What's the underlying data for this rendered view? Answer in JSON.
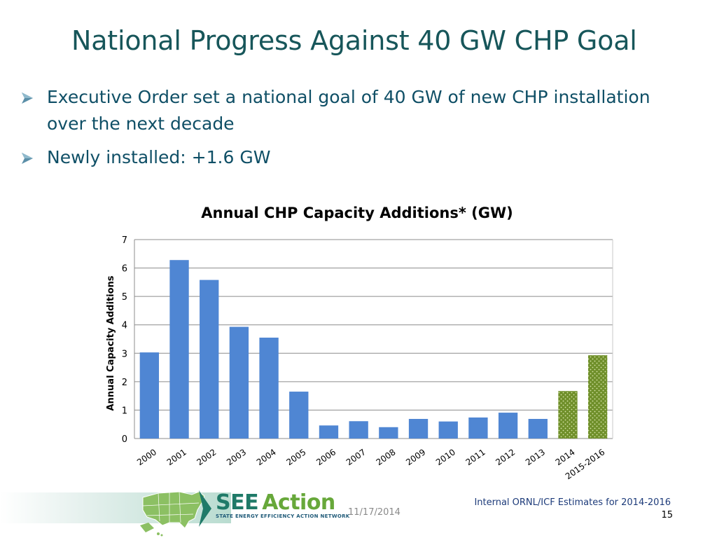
{
  "slide": {
    "title": "National Progress Against 40 GW CHP Goal",
    "bullets": [
      "Executive Order set a national goal of 40 GW of new CHP installation over the next decade",
      "Newly installed:  +1.6 GW"
    ]
  },
  "footer": {
    "logo_see": "SEE",
    "logo_action": "Action",
    "logo_subtitle": "STATE ENERGY EFFICIENCY ACTION NETWORK",
    "date": "11/17/2014",
    "note": "Internal ORNL/ICF Estimates for 2014-2016",
    "page_number": "15"
  },
  "colors": {
    "title": "#17565a",
    "bullet_text": "#0f4f66",
    "bar_actual": "#4f86d3",
    "bar_estimate": "#6f8f2a",
    "arrow": "#5b8fa8"
  },
  "chart_data": {
    "type": "bar",
    "title": "Annual CHP Capacity Additions* (GW)",
    "xlabel": "",
    "ylabel": "Annual Capacity Additions",
    "ylim": [
      0,
      7
    ],
    "yticks": [
      0,
      1,
      2,
      3,
      4,
      5,
      6,
      7
    ],
    "grid": true,
    "categories": [
      "2000",
      "2001",
      "2002",
      "2003",
      "2004",
      "2005",
      "2006",
      "2007",
      "2008",
      "2009",
      "2010",
      "2011",
      "2012",
      "2013",
      "2014",
      "2015-2016"
    ],
    "values": [
      3.03,
      6.28,
      5.58,
      3.93,
      3.55,
      1.65,
      0.46,
      0.61,
      0.4,
      0.69,
      0.6,
      0.74,
      0.91,
      0.69,
      1.67,
      2.93
    ],
    "estimated": [
      false,
      false,
      false,
      false,
      false,
      false,
      false,
      false,
      false,
      false,
      false,
      false,
      false,
      false,
      true,
      true
    ]
  }
}
